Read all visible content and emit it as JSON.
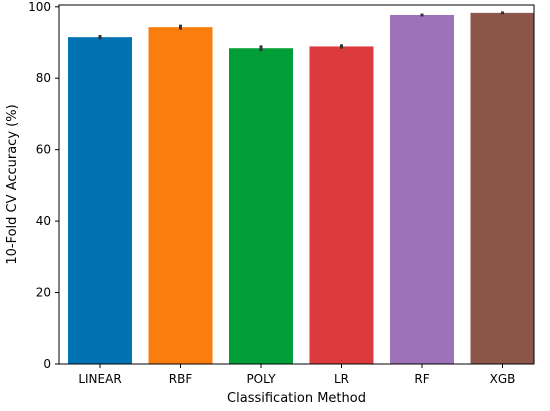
{
  "chart_data": {
    "type": "bar",
    "xlabel": "Classification Method",
    "ylabel": "10-Fold CV Accuracy (%)",
    "categories": [
      "LINEAR",
      "RBF",
      "POLY",
      "LR",
      "RF",
      "XGB"
    ],
    "values": [
      91.5,
      94.3,
      88.4,
      88.9,
      97.7,
      98.3
    ],
    "errors": [
      0.6,
      0.7,
      0.8,
      0.6,
      0.4,
      0.4
    ],
    "colors": [
      "#0173b2",
      "#f97e0e",
      "#029e37",
      "#db3b3d",
      "#9d72b8",
      "#8c564b"
    ],
    "ylim": [
      0,
      100.5
    ],
    "yticks": [
      0,
      20,
      40,
      60,
      80,
      100
    ],
    "grid": false,
    "legend": "none"
  }
}
